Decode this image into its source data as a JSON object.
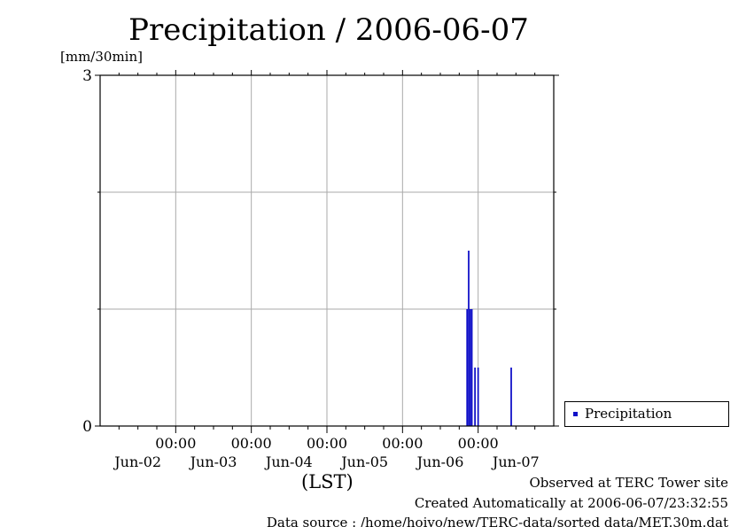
{
  "chart_data": {
    "type": "bar",
    "title": "Precipitation / 2006-06-07",
    "ylabel": "[mm/30min]",
    "xlabel": "(LST)",
    "ylim": [
      0,
      3
    ],
    "yticks": [
      "0",
      "3"
    ],
    "xlim": [
      "2006-06-02 00:00",
      "2006-06-08 00:00"
    ],
    "xticks_time": [
      "00:00",
      "00:00",
      "00:00",
      "00:00",
      "00:00"
    ],
    "xticks_day": [
      "Jun-02",
      "Jun-03",
      "Jun-04",
      "Jun-05",
      "Jun-06",
      "Jun-07"
    ],
    "grid": true,
    "legend": {
      "label": "Precipitation",
      "placement": "bottom-right outside"
    },
    "color": "#1010c8",
    "series": [
      {
        "name": "Precipitation",
        "points": [
          {
            "t": "2006-06-06 20:30",
            "v": 1.0
          },
          {
            "t": "2006-06-06 21:00",
            "v": 1.5
          },
          {
            "t": "2006-06-06 21:30",
            "v": 1.0
          },
          {
            "t": "2006-06-06 22:00",
            "v": 1.0
          },
          {
            "t": "2006-06-06 23:00",
            "v": 0.5
          },
          {
            "t": "2006-06-07 00:00",
            "v": 0.5
          },
          {
            "t": "2006-06-07 10:30",
            "v": 0.5
          }
        ]
      }
    ]
  },
  "footer": {
    "observed": "Observed at TERC Tower site",
    "created": "Created Automatically at 2006-06-07/23:32:55",
    "source": "Data source : /home/hoivo/new/TERC-data/sorted  data/MET.30m.dat"
  }
}
